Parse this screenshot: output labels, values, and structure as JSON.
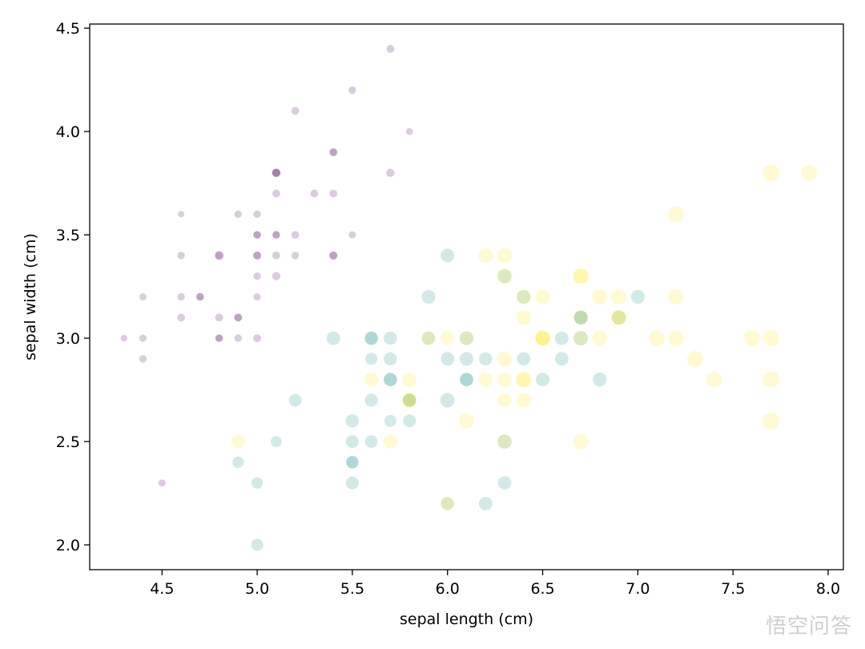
{
  "chart_data": {
    "type": "scatter",
    "title": "",
    "xlabel": "sepal length (cm)",
    "ylabel": "sepal width (cm)",
    "xlim": [
      4.12,
      8.08
    ],
    "ylim": [
      1.88,
      4.52
    ],
    "xticks": [
      "4.5",
      "5.0",
      "5.5",
      "6.0",
      "6.5",
      "7.0",
      "7.5",
      "8.0"
    ],
    "yticks": [
      "2.0",
      "2.5",
      "3.0",
      "3.5",
      "4.0",
      "4.5"
    ],
    "grid": false,
    "legend": false,
    "marker_opacity": 0.2,
    "marker_size_encodes": "petal length (cm)",
    "colors": {
      "setosa": "#440154",
      "versicolor": "#21918c",
      "virginica": "#fde725",
      "axes": "#000000",
      "background": "#ffffff"
    },
    "series": [
      {
        "class": "setosa",
        "color": "#440154",
        "points": [
          [
            5.1,
            3.5,
            1.4
          ],
          [
            4.9,
            3.0,
            1.4
          ],
          [
            4.7,
            3.2,
            1.3
          ],
          [
            4.6,
            3.1,
            1.5
          ],
          [
            5.0,
            3.6,
            1.4
          ],
          [
            5.4,
            3.9,
            1.7
          ],
          [
            4.6,
            3.4,
            1.4
          ],
          [
            5.0,
            3.4,
            1.5
          ],
          [
            4.4,
            2.9,
            1.4
          ],
          [
            4.9,
            3.1,
            1.5
          ],
          [
            5.4,
            3.7,
            1.5
          ],
          [
            4.8,
            3.4,
            1.6
          ],
          [
            4.8,
            3.0,
            1.4
          ],
          [
            4.3,
            3.0,
            1.1
          ],
          [
            5.8,
            4.0,
            1.2
          ],
          [
            5.7,
            4.4,
            1.5
          ],
          [
            5.4,
            3.9,
            1.3
          ],
          [
            5.1,
            3.5,
            1.4
          ],
          [
            5.7,
            3.8,
            1.7
          ],
          [
            5.1,
            3.8,
            1.5
          ],
          [
            5.4,
            3.4,
            1.7
          ],
          [
            5.1,
            3.7,
            1.5
          ],
          [
            4.6,
            3.6,
            1.0
          ],
          [
            5.1,
            3.3,
            1.7
          ],
          [
            4.8,
            3.4,
            1.9
          ],
          [
            5.0,
            3.0,
            1.6
          ],
          [
            5.0,
            3.4,
            1.6
          ],
          [
            5.2,
            3.5,
            1.5
          ],
          [
            5.2,
            3.4,
            1.4
          ],
          [
            4.7,
            3.2,
            1.6
          ],
          [
            4.8,
            3.1,
            1.6
          ],
          [
            5.4,
            3.4,
            1.5
          ],
          [
            5.2,
            4.1,
            1.5
          ],
          [
            5.5,
            4.2,
            1.4
          ],
          [
            4.9,
            3.1,
            1.5
          ],
          [
            5.0,
            3.2,
            1.2
          ],
          [
            5.5,
            3.5,
            1.3
          ],
          [
            4.9,
            3.6,
            1.4
          ],
          [
            4.4,
            3.0,
            1.3
          ],
          [
            5.1,
            3.4,
            1.5
          ],
          [
            5.0,
            3.5,
            1.3
          ],
          [
            4.5,
            2.3,
            1.3
          ],
          [
            4.4,
            3.2,
            1.3
          ],
          [
            5.0,
            3.5,
            1.6
          ],
          [
            5.1,
            3.8,
            1.9
          ],
          [
            4.8,
            3.0,
            1.4
          ],
          [
            5.1,
            3.8,
            1.6
          ],
          [
            4.6,
            3.2,
            1.4
          ],
          [
            5.3,
            3.7,
            1.5
          ],
          [
            5.0,
            3.3,
            1.4
          ]
        ]
      },
      {
        "class": "versicolor",
        "color": "#21918c",
        "points": [
          [
            7.0,
            3.2,
            4.7
          ],
          [
            6.4,
            3.2,
            4.5
          ],
          [
            6.9,
            3.1,
            4.9
          ],
          [
            5.5,
            2.3,
            4.0
          ],
          [
            6.5,
            2.8,
            4.6
          ],
          [
            5.7,
            2.8,
            4.5
          ],
          [
            6.3,
            3.3,
            4.7
          ],
          [
            4.9,
            2.4,
            3.3
          ],
          [
            6.6,
            2.9,
            4.6
          ],
          [
            5.2,
            2.7,
            3.9
          ],
          [
            5.0,
            2.0,
            3.5
          ],
          [
            5.9,
            3.0,
            4.2
          ],
          [
            6.0,
            2.2,
            4.0
          ],
          [
            6.1,
            2.9,
            4.7
          ],
          [
            5.6,
            2.9,
            3.6
          ],
          [
            6.7,
            3.1,
            4.4
          ],
          [
            5.6,
            3.0,
            4.5
          ],
          [
            5.8,
            2.7,
            4.1
          ],
          [
            6.2,
            2.2,
            4.5
          ],
          [
            5.6,
            2.5,
            3.9
          ],
          [
            5.9,
            3.2,
            4.8
          ],
          [
            6.1,
            2.8,
            4.0
          ],
          [
            6.3,
            2.5,
            4.9
          ],
          [
            6.1,
            2.8,
            4.7
          ],
          [
            6.4,
            2.9,
            4.3
          ],
          [
            6.6,
            3.0,
            4.4
          ],
          [
            6.8,
            2.8,
            4.8
          ],
          [
            6.7,
            3.0,
            5.0
          ],
          [
            6.0,
            2.9,
            4.5
          ],
          [
            5.7,
            2.6,
            3.5
          ],
          [
            5.5,
            2.4,
            3.8
          ],
          [
            5.5,
            2.4,
            3.7
          ],
          [
            5.8,
            2.7,
            3.9
          ],
          [
            6.0,
            2.7,
            5.1
          ],
          [
            5.4,
            3.0,
            4.5
          ],
          [
            6.0,
            3.4,
            4.5
          ],
          [
            6.7,
            3.1,
            4.7
          ],
          [
            6.3,
            2.3,
            4.4
          ],
          [
            5.6,
            3.0,
            4.1
          ],
          [
            5.5,
            2.5,
            4.0
          ],
          [
            5.5,
            2.6,
            4.4
          ],
          [
            6.1,
            3.0,
            4.6
          ],
          [
            5.8,
            2.6,
            4.0
          ],
          [
            5.0,
            2.3,
            3.3
          ],
          [
            5.6,
            2.7,
            4.2
          ],
          [
            5.7,
            3.0,
            4.2
          ],
          [
            5.7,
            2.9,
            4.2
          ],
          [
            6.2,
            2.9,
            4.3
          ],
          [
            5.1,
            2.5,
            3.0
          ],
          [
            5.7,
            2.8,
            4.1
          ]
        ]
      },
      {
        "class": "virginica",
        "color": "#fde725",
        "points": [
          [
            6.3,
            3.3,
            6.0
          ],
          [
            5.8,
            2.7,
            5.1
          ],
          [
            7.1,
            3.0,
            5.9
          ],
          [
            6.3,
            2.9,
            5.6
          ],
          [
            6.5,
            3.0,
            5.8
          ],
          [
            7.6,
            3.0,
            6.6
          ],
          [
            4.9,
            2.5,
            4.5
          ],
          [
            7.3,
            2.9,
            6.3
          ],
          [
            6.7,
            2.5,
            5.8
          ],
          [
            7.2,
            3.6,
            6.1
          ],
          [
            6.5,
            3.2,
            5.1
          ],
          [
            6.4,
            2.7,
            5.3
          ],
          [
            6.8,
            3.0,
            5.5
          ],
          [
            5.7,
            2.5,
            5.0
          ],
          [
            5.8,
            2.8,
            5.1
          ],
          [
            6.4,
            3.2,
            5.3
          ],
          [
            6.5,
            3.0,
            5.5
          ],
          [
            7.7,
            3.8,
            6.7
          ],
          [
            7.7,
            2.6,
            6.9
          ],
          [
            6.0,
            2.2,
            5.0
          ],
          [
            6.9,
            3.2,
            5.7
          ],
          [
            5.6,
            2.8,
            4.9
          ],
          [
            7.7,
            2.8,
            6.7
          ],
          [
            6.3,
            2.7,
            4.9
          ],
          [
            6.7,
            3.3,
            5.7
          ],
          [
            7.2,
            3.2,
            6.0
          ],
          [
            6.2,
            2.8,
            4.8
          ],
          [
            6.1,
            3.0,
            4.9
          ],
          [
            6.4,
            2.8,
            5.6
          ],
          [
            7.2,
            3.0,
            5.8
          ],
          [
            7.4,
            2.8,
            6.1
          ],
          [
            7.9,
            3.8,
            6.4
          ],
          [
            6.4,
            2.8,
            5.6
          ],
          [
            6.3,
            2.8,
            5.1
          ],
          [
            6.1,
            2.6,
            5.6
          ],
          [
            7.7,
            3.0,
            6.1
          ],
          [
            6.3,
            3.4,
            5.6
          ],
          [
            6.4,
            3.1,
            5.5
          ],
          [
            6.0,
            3.0,
            4.8
          ],
          [
            6.9,
            3.1,
            5.4
          ],
          [
            6.7,
            3.1,
            5.6
          ],
          [
            6.9,
            3.1,
            5.1
          ],
          [
            5.8,
            2.7,
            5.1
          ],
          [
            6.8,
            3.2,
            5.9
          ],
          [
            6.7,
            3.3,
            5.7
          ],
          [
            6.7,
            3.0,
            5.2
          ],
          [
            6.3,
            2.5,
            5.0
          ],
          [
            6.5,
            3.0,
            5.2
          ],
          [
            6.2,
            3.4,
            5.4
          ],
          [
            5.9,
            3.0,
            5.1
          ]
        ]
      }
    ]
  },
  "watermark": "悟空问答"
}
